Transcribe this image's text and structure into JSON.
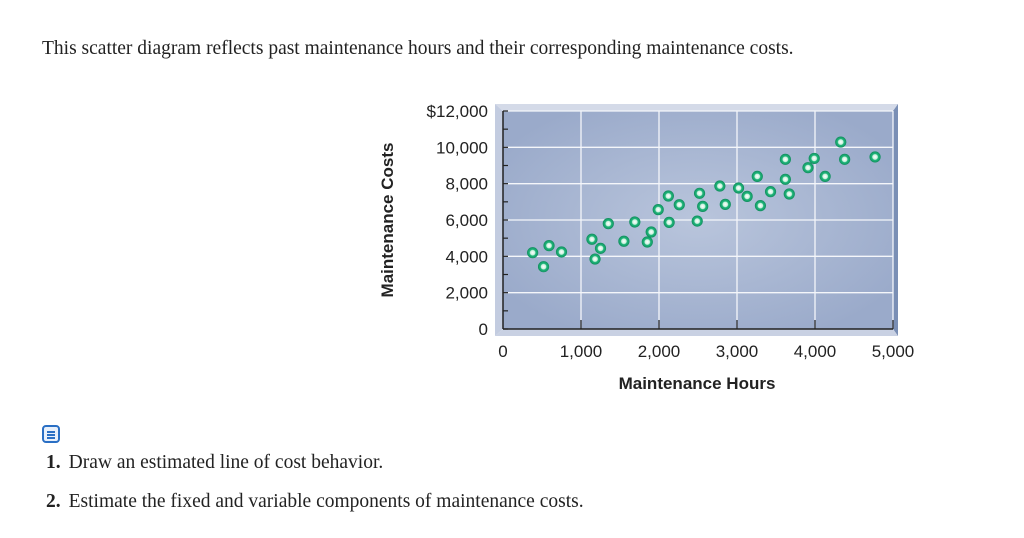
{
  "intro": "This scatter diagram reflects past maintenance hours and their corresponding maintenance costs.",
  "questions": [
    {
      "num": "1.",
      "text": "Draw an estimated line of cost behavior."
    },
    {
      "num": "2.",
      "text": "Estimate the fixed and variable components of maintenance costs."
    }
  ],
  "icons": {
    "note": "notes-icon"
  },
  "chart_data": {
    "type": "scatter",
    "xlabel": "Maintenance Hours",
    "ylabel": "Maintenance Costs",
    "xlim": [
      0,
      5000
    ],
    "ylim": [
      0,
      12000
    ],
    "xticks": [
      "0",
      "1,000",
      "2,000",
      "3,000",
      "4,000",
      "5,000"
    ],
    "yticks": [
      "0",
      "2,000",
      "4,000",
      "6,000",
      "8,000",
      "10,000",
      "$12,000"
    ],
    "grid": true,
    "marker_color": "#1fb57a",
    "background_color": "#a9b8d2",
    "points": [
      [
        380,
        4200
      ],
      [
        520,
        3430
      ],
      [
        590,
        4590
      ],
      [
        750,
        4240
      ],
      [
        1140,
        4940
      ],
      [
        1180,
        3850
      ],
      [
        1250,
        4440
      ],
      [
        1350,
        5800
      ],
      [
        1550,
        4830
      ],
      [
        1690,
        5890
      ],
      [
        1850,
        4790
      ],
      [
        1900,
        5340
      ],
      [
        1990,
        6570
      ],
      [
        2120,
        7320
      ],
      [
        2130,
        5870
      ],
      [
        2260,
        6840
      ],
      [
        2490,
        5940
      ],
      [
        2520,
        7470
      ],
      [
        2560,
        6750
      ],
      [
        2780,
        7870
      ],
      [
        2850,
        6860
      ],
      [
        3020,
        7760
      ],
      [
        3130,
        7300
      ],
      [
        3260,
        8400
      ],
      [
        3300,
        6790
      ],
      [
        3430,
        7560
      ],
      [
        3620,
        9340
      ],
      [
        3620,
        8240
      ],
      [
        3670,
        7430
      ],
      [
        3910,
        8880
      ],
      [
        3990,
        9390
      ],
      [
        4130,
        8400
      ],
      [
        4330,
        10290
      ],
      [
        4380,
        9340
      ],
      [
        4770,
        9470
      ]
    ]
  }
}
